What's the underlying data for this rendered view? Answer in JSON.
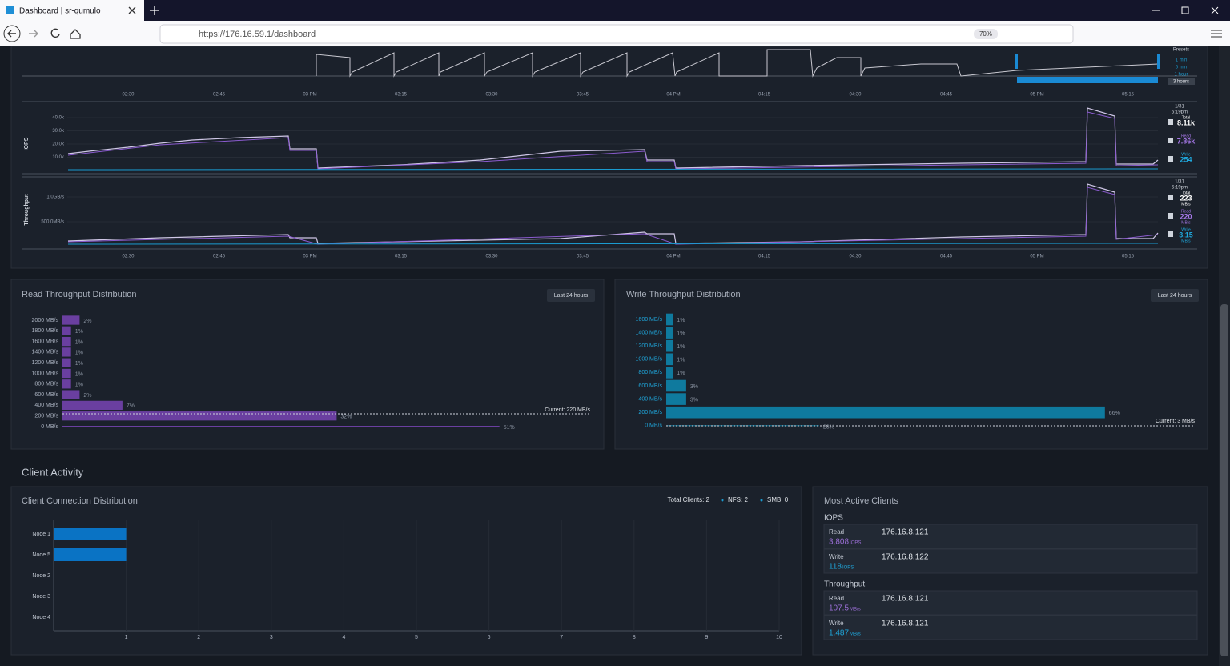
{
  "browser": {
    "tab_title": "Dashboard | sr-qumulo",
    "url": "https://176.16.59.1/dashboard",
    "zoom": "70%"
  },
  "timeline": {
    "times": [
      "02:30",
      "02:45",
      "03 PM",
      "03:15",
      "03:30",
      "03:45",
      "04 PM",
      "04:15",
      "04:30",
      "04:45",
      "05 PM",
      "05:15"
    ],
    "presets_title": "Presets",
    "presets": [
      "1 min",
      "5 min",
      "1 hour",
      "3 hours"
    ]
  },
  "iops_chart": {
    "axis_label": "IOPS",
    "ticks": [
      "40.0k",
      "30.0k",
      "20.0k",
      "10.0k"
    ],
    "legend": {
      "date": "1/31",
      "time": "5:19pm",
      "total_label": "Total",
      "total": "8.11k",
      "read_label": "Read",
      "read": "7.86k",
      "write_label": "Write",
      "write": "254"
    }
  },
  "throughput_chart": {
    "axis_label": "Throughput",
    "ticks": [
      "1.0GB/s",
      "500.0MB/s"
    ],
    "legend": {
      "date": "1/31",
      "time": "5:19pm",
      "total_label": "Total",
      "total": "223",
      "read_label": "Read",
      "read": "220",
      "write_label": "Write",
      "write": "3.15",
      "unit": "MB/s"
    }
  },
  "read_distribution": {
    "title": "Read Throughput Distribution",
    "button": "Last 24 hours",
    "categories": [
      "2000 MB/s",
      "1800 MB/s",
      "1600 MB/s",
      "1400 MB/s",
      "1200 MB/s",
      "1000 MB/s",
      "800 MB/s",
      "600 MB/s",
      "400 MB/s",
      "200 MB/s",
      "0 MB/s"
    ],
    "values": [
      2,
      1,
      1,
      1,
      1,
      1,
      1,
      2,
      7,
      32,
      51
    ],
    "value_labels": [
      "2%",
      "1%",
      "1%",
      "1%",
      "1%",
      "1%",
      "1%",
      "2%",
      "7%",
      "32%",
      "51%"
    ],
    "current": "Current: 220 MB/s"
  },
  "write_distribution": {
    "title": "Write Throughput Distribution",
    "button": "Last 24 hours",
    "categories": [
      "1600 MB/s",
      "1400 MB/s",
      "1200 MB/s",
      "1000 MB/s",
      "800 MB/s",
      "600 MB/s",
      "400 MB/s",
      "200 MB/s",
      "0 MB/s"
    ],
    "values": [
      1,
      1,
      1,
      1,
      1,
      3,
      3,
      66,
      23
    ],
    "value_labels": [
      "1%",
      "1%",
      "1%",
      "1%",
      "1%",
      "3%",
      "3%",
      "66%",
      "23%"
    ],
    "current": "Current: 3 MB/s"
  },
  "client_activity": {
    "heading": "Client Activity",
    "connections": {
      "title": "Client Connection Distribution",
      "total": "Total Clients: 2",
      "nfs": "NFS: 2",
      "smb": "SMB: 0",
      "categories": [
        "Node 1",
        "Node 5",
        "Node 2",
        "Node 3",
        "Node 4"
      ],
      "values": [
        1,
        1,
        0,
        0,
        0
      ],
      "xlim": [
        0,
        10
      ],
      "xticks": [
        1,
        2,
        3,
        4,
        5,
        6,
        7,
        8,
        9,
        10
      ]
    },
    "most_active": {
      "title": "Most Active Clients",
      "sections": [
        {
          "title": "IOPS",
          "rows": [
            {
              "label": "Read",
              "value": "3,808",
              "unit": "IOPS",
              "ip": "176.16.8.121"
            },
            {
              "label": "Write",
              "value": "118",
              "unit": "IOPS",
              "ip": "176.16.8.122"
            }
          ]
        },
        {
          "title": "Throughput",
          "rows": [
            {
              "label": "Read",
              "value": "107.5",
              "unit": "MB/s",
              "ip": "176.16.8.121"
            },
            {
              "label": "Write",
              "value": "1.487",
              "unit": "MB/s",
              "ip": "176.16.8.121"
            }
          ]
        }
      ]
    }
  }
}
